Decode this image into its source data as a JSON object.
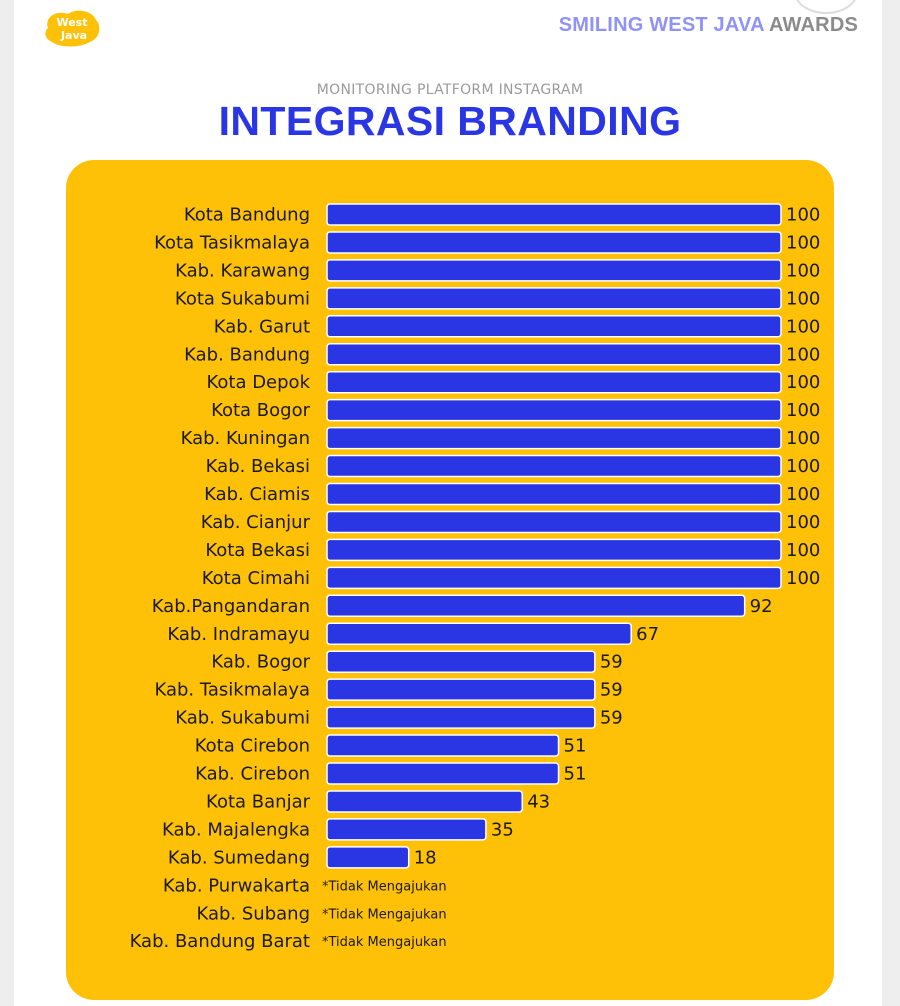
{
  "header": {
    "brand_main": "SMILING WEST JAVA",
    "brand_sub": " AWARDS",
    "subtitle": "MONITORING PLATFORM INSTAGRAM",
    "title": "INTEGRASI BRANDING",
    "logo_text_top": "West",
    "logo_text_bottom": "Java"
  },
  "colors": {
    "panel": "#ffc107",
    "bar": "#2a35e4",
    "title": "#2a35e4"
  },
  "chart_data": {
    "type": "bar",
    "orientation": "horizontal",
    "title": "INTEGRASI BRANDING",
    "xlim": [
      0,
      100
    ],
    "grid": false,
    "categories": [
      "Kota Bandung",
      "Kota Tasikmalaya",
      "Kab. Karawang",
      "Kota Sukabumi",
      "Kab. Garut",
      "Kab. Bandung",
      "Kota Depok",
      "Kota Bogor",
      "Kab. Kuningan",
      "Kab. Bekasi",
      "Kab. Ciamis",
      "Kab. Cianjur",
      "Kota Bekasi",
      "Kota Cimahi",
      "Kab.Pangandaran",
      "Kab. Indramayu",
      "Kab. Bogor",
      "Kab. Tasikmalaya",
      "Kab. Sukabumi",
      "Kota Cirebon",
      "Kab. Cirebon",
      "Kota Banjar",
      "Kab. Majalengka",
      "Kab. Sumedang",
      "Kab. Purwakarta",
      "Kab. Subang",
      "Kab. Bandung Barat"
    ],
    "values": [
      100,
      100,
      100,
      100,
      100,
      100,
      100,
      100,
      100,
      100,
      100,
      100,
      100,
      100,
      92,
      67,
      59,
      59,
      59,
      51,
      51,
      43,
      35,
      18,
      null,
      null,
      null
    ],
    "notes": [
      "*Tidak Mengajukan",
      "*Tidak Mengajukan",
      "*Tidak Mengajukan"
    ]
  }
}
